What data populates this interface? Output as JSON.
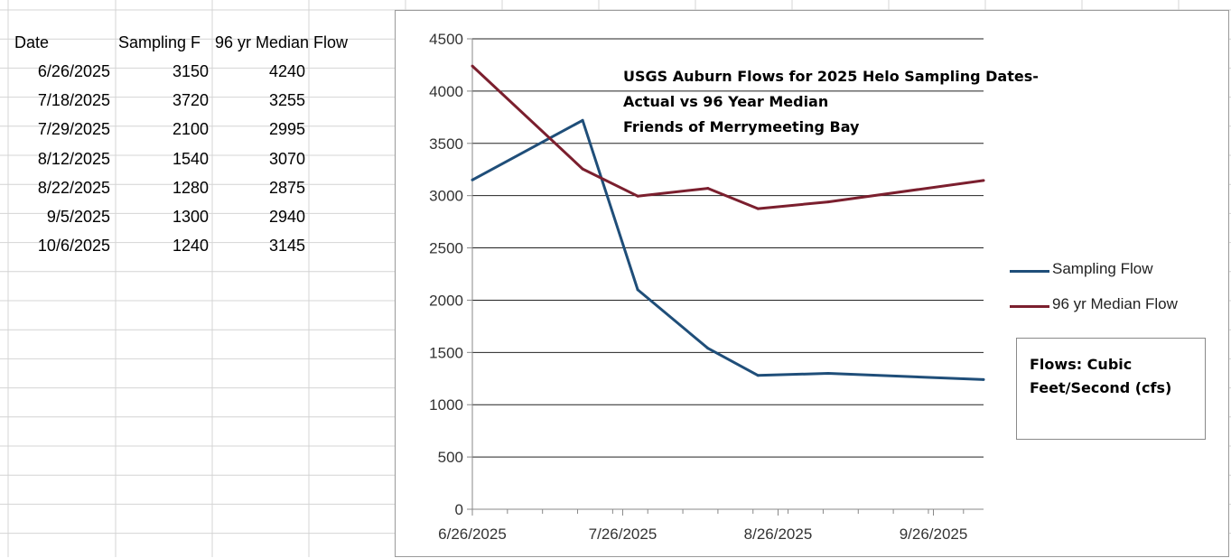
{
  "sheet": {
    "headers": [
      "Date",
      "Sampling F",
      "96 yr Median Flow"
    ],
    "rows": [
      [
        "6/26/2025",
        "3150",
        "4240"
      ],
      [
        "7/18/2025",
        "3720",
        "3255"
      ],
      [
        "7/29/2025",
        "2100",
        "2995"
      ],
      [
        "8/12/2025",
        "1540",
        "3070"
      ],
      [
        "8/22/2025",
        "1280",
        "2875"
      ],
      [
        "9/5/2025",
        "1300",
        "2940"
      ],
      [
        "10/6/2025",
        "1240",
        "3145"
      ]
    ]
  },
  "chart_data": {
    "type": "line",
    "title_lines": [
      "USGS Auburn Flows for 2025 Helo Sampling Dates-",
      "Actual vs 96 Year Median",
      "Friends of Merrymeeting Bay"
    ],
    "x": [
      "2025-06-26",
      "2025-07-18",
      "2025-07-29",
      "2025-08-12",
      "2025-08-22",
      "2025-09-05",
      "2025-10-06"
    ],
    "xlim": [
      "2025-06-26",
      "2025-10-06"
    ],
    "x_tick_values": [
      "2025-06-26",
      "2025-07-26",
      "2025-08-26",
      "2025-09-26"
    ],
    "x_tick_labels": [
      "6/26/2025",
      "7/26/2025",
      "8/26/2025",
      "9/26/2025"
    ],
    "ylim": [
      0,
      4500
    ],
    "y_ticks": [
      0,
      500,
      1000,
      1500,
      2000,
      2500,
      3000,
      3500,
      4000,
      4500
    ],
    "y_tick_labels": [
      "0",
      "500",
      "1000",
      "1500",
      "2000",
      "2500",
      "3000",
      "3500",
      "4000",
      "4500"
    ],
    "grid": "horizontal",
    "legend_position": "right",
    "series": [
      {
        "name": "Sampling Flow",
        "values": [
          3150,
          3720,
          2100,
          1540,
          1280,
          1300,
          1240
        ],
        "color": "#1f4e79"
      },
      {
        "name": "96 yr Median Flow",
        "values": [
          4240,
          3255,
          2995,
          3070,
          2875,
          2940,
          3145
        ],
        "color": "#7b1f2e"
      }
    ],
    "annotation": "Flows: Cubic Feet/Second (cfs)"
  }
}
